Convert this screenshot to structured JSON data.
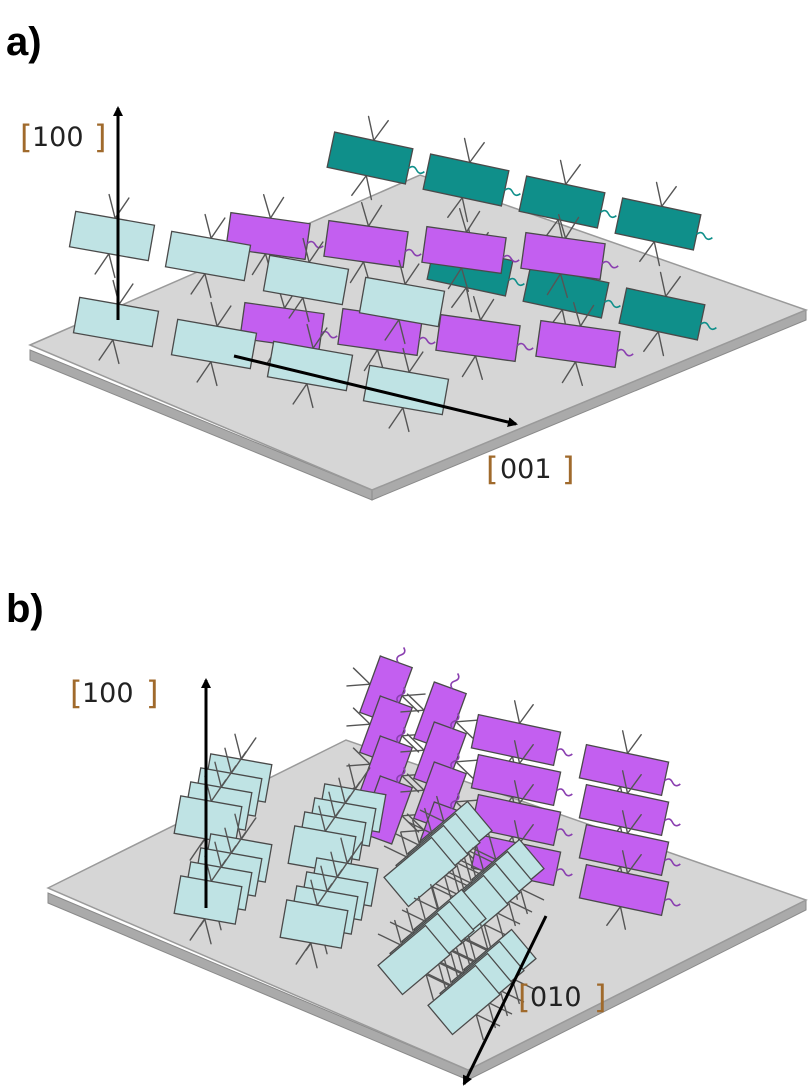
{
  "figure": {
    "panel_a": {
      "label": "a)",
      "axis_vertical": "100",
      "axis_horizontal": "001"
    },
    "panel_b": {
      "label": "b)",
      "axis_vertical": "100",
      "axis_depth": "010"
    }
  },
  "colors": {
    "light_blue": "#bfe3e4",
    "magenta": "#c35ff0",
    "teal": "#0f8f8a",
    "substrate": "#d6d6d6",
    "bracket": "#a06a2c"
  }
}
